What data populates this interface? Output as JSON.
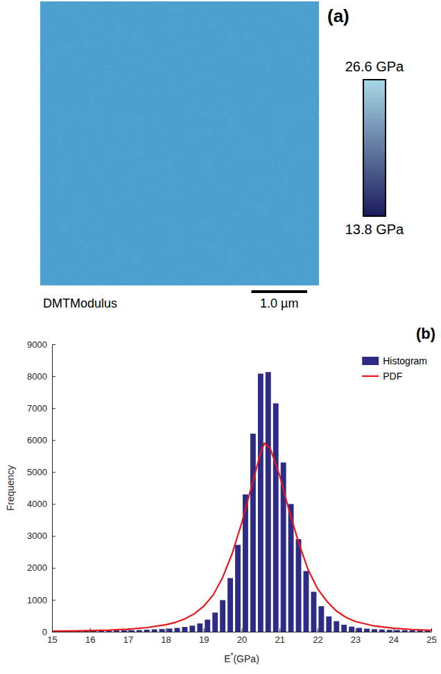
{
  "chart_data": [
    {
      "type": "image",
      "panel": "(a)",
      "label": "DMTModulus",
      "color": "#3f9dd2",
      "size": 5,
      "scale_bar": {
        "value": 1.0,
        "label": "1.0 µm"
      },
      "colorbar": {
        "range": [
          13.8,
          26.6
        ],
        "ticks": [
          {
            "value": 26.6,
            "label": "26.6 GPa"
          },
          {
            "value": 13.8,
            "label": "13.8 GPa"
          }
        ],
        "colors": [
          "#1c1b5c",
          "#a9d8e6"
        ]
      }
    },
    {
      "type": "histogram",
      "panel": "(b)",
      "x_label": "E*(GPa)",
      "y_label": "Frequency",
      "xlim": [
        15,
        25
      ],
      "xticks": [
        15,
        16,
        17,
        18,
        19,
        20,
        21,
        22,
        23,
        24,
        25
      ],
      "ylim": [
        0,
        9000
      ],
      "yticks": [
        0,
        1000,
        2000,
        3000,
        4000,
        5000,
        6000,
        7000,
        8000,
        9000
      ],
      "legend": "top-right",
      "series": [
        {
          "name": "Histogram",
          "type": "bar",
          "color": "#2e2b87",
          "bins": [
            15.0,
            15.2,
            15.4,
            15.6,
            15.8,
            16.0,
            16.2,
            16.4,
            16.6,
            16.8,
            17.0,
            17.2,
            17.4,
            17.6,
            17.8,
            18.0,
            18.2,
            18.4,
            18.6,
            18.8,
            19.0,
            19.2,
            19.4,
            19.6,
            19.8,
            20.0,
            20.2,
            20.4,
            20.6,
            20.8,
            21.0,
            21.2,
            21.4,
            21.6,
            21.8,
            22.0,
            22.2,
            22.4,
            22.6,
            22.8,
            23.0,
            23.2,
            23.4,
            23.6,
            23.8,
            24.0,
            24.2,
            24.4,
            24.6,
            24.8,
            25.0
          ],
          "values": [
            15,
            18,
            20,
            22,
            25,
            28,
            30,
            35,
            40,
            45,
            50,
            55,
            65,
            75,
            85,
            100,
            120,
            150,
            190,
            260,
            380,
            600,
            990,
            1680,
            2720,
            4300,
            6200,
            8080,
            8130,
            7150,
            5300,
            4000,
            2900,
            1900,
            1250,
            800,
            480,
            330,
            220,
            160,
            120,
            95,
            80,
            70,
            60,
            55,
            50,
            45,
            40,
            35
          ]
        },
        {
          "name": "PDF",
          "type": "line",
          "color": "#e8161b",
          "x": [
            15,
            15.5,
            16,
            16.5,
            17,
            17.5,
            18,
            18.25,
            18.5,
            18.75,
            19,
            19.25,
            19.5,
            19.75,
            20,
            20.25,
            20.5,
            20.6,
            20.75,
            21,
            21.25,
            21.5,
            21.75,
            22,
            22.25,
            22.5,
            22.75,
            23,
            23.5,
            24,
            24.5,
            25
          ],
          "values": [
            20,
            25,
            35,
            50,
            80,
            130,
            220,
            290,
            400,
            560,
            800,
            1150,
            1700,
            2450,
            3400,
            4500,
            5600,
            5900,
            5750,
            4900,
            3800,
            2800,
            1950,
            1350,
            950,
            650,
            450,
            320,
            180,
            110,
            70,
            45
          ]
        }
      ]
    }
  ]
}
